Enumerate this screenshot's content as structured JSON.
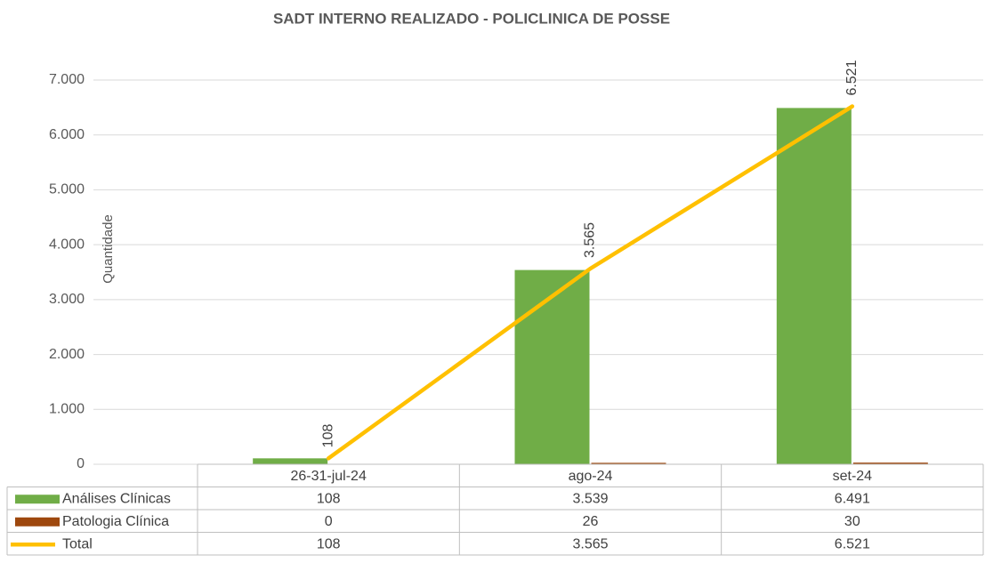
{
  "chart_data": {
    "type": "bar",
    "title": "SADT INTERNO REALIZADO - POLICLINICA DE POSSE",
    "y_label": "Quantidade",
    "categories": [
      "26-31-jul-24",
      "ago-24",
      "set-24"
    ],
    "series": [
      {
        "name": "Análises Clínicas",
        "type": "bar",
        "color": "#70ad47",
        "values": [
          108,
          3539,
          6491
        ],
        "value_labels": [
          "108",
          "3.539",
          "6.491"
        ]
      },
      {
        "name": "Patologia Clínica",
        "type": "bar",
        "color": "#9e480e",
        "values": [
          0,
          26,
          30
        ]
      },
      {
        "name": "Total",
        "type": "line",
        "color": "#ffc000",
        "values": [
          108,
          3565,
          6521
        ],
        "value_labels": [
          "108",
          "3.565",
          "6.521"
        ]
      }
    ],
    "ylim": [
      0,
      7000
    ],
    "yticks": [
      0,
      {
        "value": 1000,
        "label": "1.000"
      },
      {
        "value": 2000,
        "label": "2.000"
      },
      {
        "value": 3000,
        "label": "3.000"
      },
      {
        "value": 4000,
        "label": "4.000"
      },
      {
        "value": 5000,
        "label": "5.000"
      },
      {
        "value": 6000,
        "label": "6.000"
      },
      {
        "value": 7000,
        "label": "7.000"
      }
    ],
    "grid": true
  }
}
